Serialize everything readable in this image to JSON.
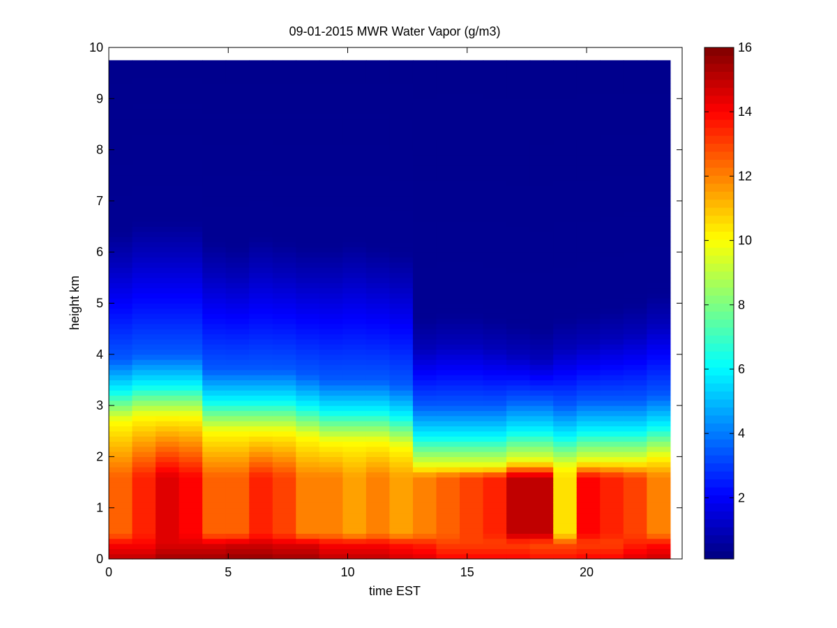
{
  "chart_data": {
    "type": "heatmap",
    "title": "09-01-2015 MWR Water Vapor (g/m3)",
    "xlabel": "time EST",
    "ylabel": "height km",
    "xlim": [
      0,
      24
    ],
    "ylim": [
      0,
      10
    ],
    "x_ticks": [
      0,
      5,
      10,
      15,
      20
    ],
    "y_ticks": [
      0,
      1,
      2,
      3,
      4,
      5,
      6,
      7,
      8,
      9,
      10
    ],
    "data_x_range": [
      0,
      23.5
    ],
    "data_y_max": 9.75,
    "colormap": "jet",
    "colorbar": {
      "range": [
        0.1,
        16
      ],
      "ticks": [
        2,
        4,
        6,
        8,
        10,
        12,
        14,
        16
      ]
    },
    "time_hours": [
      0,
      1,
      2,
      3,
      4,
      5,
      6,
      7,
      8,
      9,
      10,
      11,
      12,
      13,
      14,
      15,
      16,
      17,
      18,
      19,
      20,
      21,
      22,
      23
    ],
    "surface_value": [
      15,
      15,
      15.5,
      15.5,
      15.5,
      15.7,
      15.7,
      15.5,
      15.5,
      15,
      15,
      15,
      14.7,
      14.5,
      14,
      14,
      14,
      14,
      13.8,
      13.8,
      14,
      14,
      14.5,
      14.8
    ],
    "low_level_value": [
      12.5,
      13.5,
      14.5,
      14,
      12.5,
      12.5,
      13.5,
      13,
      12,
      12,
      11.5,
      12,
      11.5,
      12,
      12.5,
      13,
      13.5,
      15,
      15,
      10.5,
      14,
      13.5,
      13,
      12
    ],
    "moist_layer_top_km": [
      2.7,
      2.8,
      2.8,
      2.8,
      2.5,
      2.5,
      2.5,
      2.5,
      2.4,
      2.3,
      2.3,
      2.3,
      2.2,
      1.8,
      1.8,
      1.8,
      1.8,
      1.9,
      1.9,
      1.8,
      1.9,
      1.9,
      1.9,
      2.0
    ],
    "humid_top_km": [
      5.8,
      6.0,
      6.0,
      6.0,
      5.6,
      5.5,
      5.7,
      5.6,
      5.5,
      5.5,
      5.6,
      5.5,
      5.4,
      4.1,
      4.2,
      4.2,
      4.1,
      4.0,
      3.9,
      4.1,
      4.2,
      4.3,
      4.4,
      4.6
    ]
  }
}
